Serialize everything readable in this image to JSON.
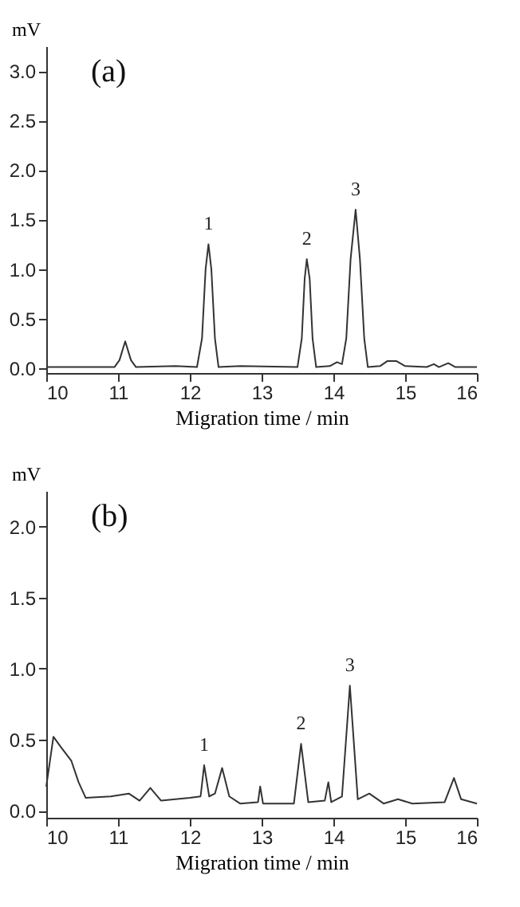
{
  "chart_data": [
    {
      "type": "line",
      "title": "(a)",
      "xlabel": "Migration time / min",
      "ylabel": "mV",
      "xlim": [
        10,
        16
      ],
      "ylim": [
        -0.05,
        3.25
      ],
      "xticks": [
        10,
        11,
        12,
        13,
        14,
        15,
        16
      ],
      "yticks": [
        {
          "value": 0,
          "label": "0.0"
        },
        {
          "value": 0.5,
          "label": "0.5"
        },
        {
          "value": 1,
          "label": "1.0"
        },
        {
          "value": 1.5,
          "label": "1.5"
        },
        {
          "value": 2,
          "label": "2.0"
        },
        {
          "value": 2.5,
          "label": "2.5"
        },
        {
          "value": 3,
          "label": "3.0"
        }
      ],
      "grid": false,
      "marker": "none",
      "line_style": "solid",
      "series": [
        {
          "color": "#333333",
          "x": [
            10.0,
            10.5,
            10.95,
            11.02,
            11.1,
            11.18,
            11.25,
            11.8,
            12.1,
            12.17,
            12.22,
            12.26,
            12.3,
            12.35,
            12.4,
            12.7,
            13.5,
            13.56,
            13.6,
            13.63,
            13.67,
            13.71,
            13.76,
            13.95,
            14.05,
            14.12,
            14.18,
            14.24,
            14.31,
            14.37,
            14.43,
            14.48,
            14.65,
            14.75,
            14.88,
            15.0,
            15.3,
            15.4,
            15.47,
            15.6,
            15.7,
            16.0
          ],
          "values": [
            0.01,
            0.01,
            0.01,
            0.08,
            0.27,
            0.08,
            0.01,
            0.02,
            0.01,
            0.3,
            1.0,
            1.25,
            1.0,
            0.3,
            0.01,
            0.02,
            0.01,
            0.3,
            0.9,
            1.1,
            0.9,
            0.3,
            0.01,
            0.02,
            0.06,
            0.04,
            0.3,
            1.1,
            1.6,
            1.1,
            0.3,
            0.01,
            0.02,
            0.07,
            0.07,
            0.02,
            0.01,
            0.04,
            0.01,
            0.05,
            0.01,
            0.01
          ]
        }
      ],
      "annotations": [
        {
          "text": "1",
          "x": 12.26,
          "y": 1.25
        },
        {
          "text": "2",
          "x": 13.63,
          "y": 1.1
        },
        {
          "text": "3",
          "x": 14.31,
          "y": 1.6
        }
      ]
    },
    {
      "type": "line",
      "title": "(b)",
      "xlabel": "Migration time / min",
      "ylabel": "mV",
      "xlim": [
        10,
        16
      ],
      "ylim": [
        -0.05,
        2.25
      ],
      "xticks": [
        10,
        11,
        12,
        13,
        14,
        15,
        16
      ],
      "yticks": [
        {
          "value": 0,
          "label": "0.0"
        },
        {
          "value": 0.5,
          "label": "0.5"
        },
        {
          "value": 1,
          "label": "1.0"
        },
        {
          "value": 1.5,
          "label": "1.5"
        },
        {
          "value": 2,
          "label": "2.0"
        }
      ],
      "grid": false,
      "marker": "none",
      "line_style": "solid",
      "series": [
        {
          "color": "#333333",
          "x": [
            10.0,
            10.1,
            10.2,
            10.35,
            10.45,
            10.55,
            10.9,
            11.15,
            11.3,
            11.45,
            11.6,
            12.0,
            12.15,
            12.2,
            12.27,
            12.35,
            12.45,
            12.55,
            12.7,
            12.95,
            12.98,
            13.02,
            13.45,
            13.55,
            13.65,
            13.88,
            13.93,
            13.97,
            14.12,
            14.23,
            14.34,
            14.5,
            14.7,
            14.9,
            15.1,
            15.55,
            15.68,
            15.78,
            16.0
          ],
          "values": [
            0.17,
            0.52,
            0.45,
            0.35,
            0.2,
            0.09,
            0.1,
            0.12,
            0.07,
            0.16,
            0.07,
            0.09,
            0.1,
            0.32,
            0.1,
            0.12,
            0.3,
            0.1,
            0.05,
            0.06,
            0.17,
            0.05,
            0.05,
            0.47,
            0.06,
            0.07,
            0.2,
            0.06,
            0.1,
            0.88,
            0.08,
            0.12,
            0.05,
            0.08,
            0.05,
            0.06,
            0.23,
            0.08,
            0.05
          ]
        }
      ],
      "annotations": [
        {
          "text": "1",
          "x": 12.2,
          "y": 0.32
        },
        {
          "text": "2",
          "x": 13.55,
          "y": 0.47
        },
        {
          "text": "3",
          "x": 14.23,
          "y": 0.88
        }
      ]
    }
  ]
}
